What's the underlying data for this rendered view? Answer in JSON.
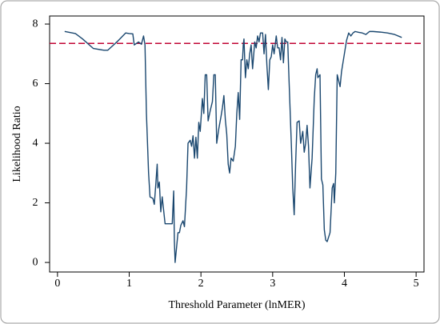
{
  "chart_data": {
    "type": "line",
    "x_label": "Threshold Parameter (lnMER)",
    "y_label": "Likelihood Ratio",
    "x": [
      0.1,
      0.25,
      0.35,
      0.5,
      0.65,
      0.7,
      0.85,
      0.95,
      1.0,
      1.05,
      1.07,
      1.1,
      1.13,
      1.17,
      1.2,
      1.22,
      1.24,
      1.27,
      1.29,
      1.33,
      1.35,
      1.37,
      1.39,
      1.4,
      1.42,
      1.44,
      1.46,
      1.5,
      1.55,
      1.6,
      1.62,
      1.63,
      1.64,
      1.66,
      1.68,
      1.7,
      1.72,
      1.75,
      1.77,
      1.8,
      1.82,
      1.85,
      1.87,
      1.89,
      1.91,
      1.93,
      1.95,
      1.97,
      1.99,
      2.02,
      2.04,
      2.06,
      2.08,
      2.1,
      2.13,
      2.16,
      2.18,
      2.2,
      2.22,
      2.25,
      2.28,
      2.3,
      2.32,
      2.34,
      2.36,
      2.38,
      2.4,
      2.42,
      2.45,
      2.48,
      2.5,
      2.52,
      2.54,
      2.56,
      2.58,
      2.59,
      2.6,
      2.62,
      2.64,
      2.66,
      2.68,
      2.7,
      2.72,
      2.75,
      2.77,
      2.79,
      2.81,
      2.83,
      2.86,
      2.88,
      2.9,
      2.92,
      2.94,
      2.96,
      2.98,
      3.0,
      3.02,
      3.05,
      3.07,
      3.09,
      3.11,
      3.13,
      3.15,
      3.17,
      3.19,
      3.21,
      3.23,
      3.26,
      3.28,
      3.3,
      3.32,
      3.34,
      3.37,
      3.39,
      3.42,
      3.44,
      3.46,
      3.48,
      3.5,
      3.52,
      3.55,
      3.58,
      3.6,
      3.62,
      3.63,
      3.66,
      3.68,
      3.7,
      3.72,
      3.74,
      3.76,
      3.78,
      3.8,
      3.83,
      3.85,
      3.86,
      3.88,
      3.9,
      3.92,
      3.94,
      3.96,
      4.0,
      4.03,
      4.06,
      4.09,
      4.12,
      4.15,
      4.2,
      4.25,
      4.3,
      4.35,
      4.4,
      4.5,
      4.6,
      4.7,
      4.8
    ],
    "series": [
      {
        "color": "#1a476f",
        "values": [
          7.75,
          7.68,
          7.5,
          7.18,
          7.12,
          7.12,
          7.45,
          7.7,
          7.68,
          7.67,
          7.3,
          7.35,
          7.4,
          7.32,
          7.6,
          7.3,
          5.0,
          3.0,
          2.2,
          2.15,
          1.95,
          2.6,
          3.3,
          2.5,
          2.7,
          1.7,
          2.2,
          1.3,
          1.3,
          1.3,
          2.4,
          0.7,
          0.0,
          0.5,
          1.0,
          1.0,
          1.25,
          1.4,
          1.2,
          2.5,
          4.0,
          4.1,
          3.9,
          4.25,
          3.5,
          4.2,
          3.5,
          4.7,
          4.4,
          5.5,
          5.0,
          6.3,
          6.3,
          4.75,
          5.1,
          5.4,
          6.3,
          6.3,
          4.0,
          4.5,
          4.9,
          5.2,
          5.6,
          4.8,
          4.3,
          3.3,
          3.0,
          3.5,
          3.4,
          3.9,
          5.0,
          5.7,
          4.8,
          6.8,
          6.8,
          7.3,
          7.5,
          6.2,
          6.8,
          6.5,
          7.0,
          7.3,
          6.5,
          7.4,
          7.2,
          7.6,
          7.4,
          7.7,
          7.7,
          7.0,
          7.65,
          6.6,
          5.8,
          6.8,
          6.9,
          7.3,
          7.0,
          7.6,
          7.2,
          7.2,
          6.8,
          7.55,
          6.7,
          7.5,
          7.4,
          7.4,
          6.0,
          4.0,
          2.5,
          1.6,
          3.3,
          4.7,
          4.75,
          4.0,
          4.4,
          3.7,
          4.0,
          4.6,
          3.9,
          2.5,
          3.5,
          5.5,
          6.3,
          6.5,
          6.2,
          6.3,
          2.8,
          2.6,
          1.1,
          0.75,
          0.7,
          0.85,
          1.0,
          2.5,
          2.65,
          2.0,
          3.0,
          6.3,
          6.1,
          5.9,
          6.4,
          7.0,
          7.45,
          7.7,
          7.6,
          7.7,
          7.75,
          7.72,
          7.7,
          7.65,
          7.75,
          7.75,
          7.73,
          7.7,
          7.65,
          7.55
        ]
      }
    ],
    "reference_line": {
      "value": 7.35,
      "color": "#c10534"
    },
    "xlim": [
      -0.11,
      5.11
    ],
    "xticks": [
      0,
      1,
      2,
      3,
      4,
      5
    ],
    "ylim": [
      -0.32,
      8.27
    ],
    "yticks": [
      0,
      2,
      4,
      6,
      8
    ],
    "grid": false
  }
}
